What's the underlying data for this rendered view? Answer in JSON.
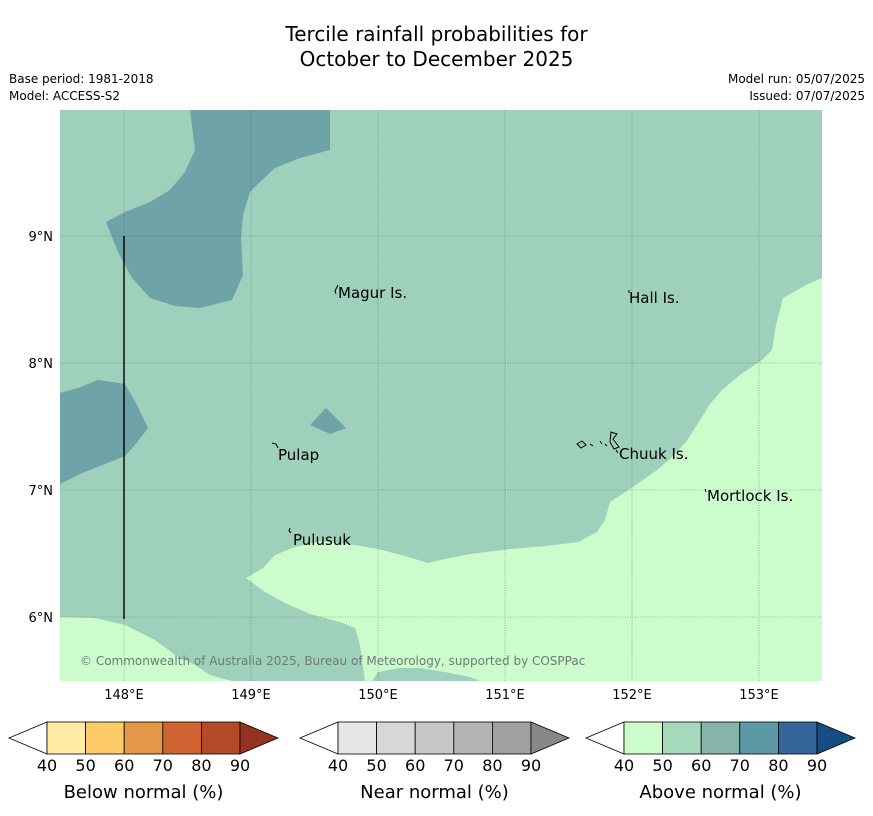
{
  "title": {
    "line1": "Tercile rainfall probabilities for",
    "line2": "October to December 2025"
  },
  "meta": {
    "base_period": "Base period: 1981-2018",
    "model": "Model: ACCESS-S2",
    "model_run": "Model run: 05/07/2025",
    "issued": "Issued: 07/07/2025"
  },
  "map": {
    "lon_ticks": [
      "148°E",
      "149°E",
      "150°E",
      "151°E",
      "152°E",
      "153°E"
    ],
    "lat_ticks": [
      "9°N",
      "8°N",
      "7°N",
      "6°N"
    ],
    "places": [
      {
        "id": "magur",
        "label": "Magur Is."
      },
      {
        "id": "hall",
        "label": "Hall Is."
      },
      {
        "id": "pulap",
        "label": "Pulap"
      },
      {
        "id": "chuuk",
        "label": "Chuuk Is."
      },
      {
        "id": "mortlock",
        "label": "Mortlock Is."
      },
      {
        "id": "pulusuk",
        "label": "Pulusuk"
      }
    ],
    "copyright": "© Commonwealth of Australia 2025, Bureau of Meteorology, supported by COSPPac",
    "colors": {
      "above_40_50": "#ccfccc",
      "above_50_60": "#9ed0bb",
      "above_60_70": "#6ea3a8"
    }
  },
  "colorbars": [
    {
      "id": "below",
      "label": "Below normal (%)",
      "ticks": [
        "40",
        "50",
        "60",
        "70",
        "80",
        "90"
      ],
      "colors": [
        "#ffffff",
        "#feeca4",
        "#fdcb68",
        "#e39747",
        "#cf6332",
        "#b34a28",
        "#963222"
      ]
    },
    {
      "id": "near",
      "label": "Near normal (%)",
      "ticks": [
        "40",
        "50",
        "60",
        "70",
        "80",
        "90"
      ],
      "colors": [
        "#ffffff",
        "#e6e6e6",
        "#d7d7d7",
        "#c7c7c7",
        "#b4b4b4",
        "#a0a0a0",
        "#888888"
      ]
    },
    {
      "id": "above",
      "label": "Above normal (%)",
      "ticks": [
        "40",
        "50",
        "60",
        "70",
        "80",
        "90"
      ],
      "colors": [
        "#ffffff",
        "#ccfccc",
        "#a6d9bb",
        "#86b4a8",
        "#5d98a6",
        "#33679c",
        "#164d85"
      ]
    }
  ]
}
